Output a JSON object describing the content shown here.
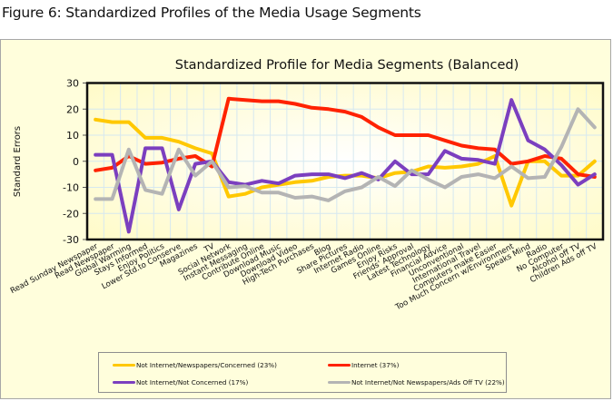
{
  "figure_title": "Figure 6: Standardized Profiles of the Media Usage Segments",
  "chart_data": {
    "type": "line",
    "title": "Standardized Profile for Media Segments (Balanced)",
    "xlabel": "",
    "ylabel": "Standard Errors",
    "ylim": [
      -30,
      30
    ],
    "yticks": [
      30,
      20,
      10,
      0,
      -10,
      -20,
      -30
    ],
    "grid": true,
    "legend_position": "bottom",
    "categories": [
      "Read Sunday Newspaper",
      "Read Newspaper",
      "Global Warming",
      "Stays Informed",
      "Enjoy Politics",
      "Lower Std.to Conserve",
      "Magazines",
      "TV",
      "Social Network",
      "Instant Messaging",
      "Contribute Online",
      "Download Music",
      "Download Video",
      "High-Tech Purchases",
      "Blog",
      "Share Pictures",
      "Internet Radio",
      "Games Online",
      "Enjoy Risks",
      "Friends' Approval",
      "Latest Technology",
      "Financial Advice",
      "Unconventional",
      "International Travel",
      "Computers make Easier",
      "Too Much Concern w/Environment",
      "Speaks Mind",
      "Radio",
      "No Computer",
      "Alcohol off TV",
      "Children Ads off TV"
    ],
    "series": [
      {
        "name": "Not Internet/Newspapers/Concerned (23%)",
        "color": "#ffc800",
        "values": [
          16,
          15,
          15,
          9,
          9,
          7.5,
          5,
          3,
          -13.5,
          -12.5,
          -10,
          -9,
          -8,
          -7.5,
          -6,
          -5.5,
          -5.5,
          -6.5,
          -4.5,
          -4,
          -2,
          -2.5,
          -2,
          -1,
          2,
          -17,
          0,
          0,
          -5.5,
          -5.5,
          0
        ]
      },
      {
        "name": "Internet (37%)",
        "color": "#ff2200",
        "values": [
          -3.5,
          -2.5,
          2,
          -1,
          -0.5,
          1,
          2,
          -2,
          24,
          23.5,
          23,
          23,
          22,
          20.5,
          20,
          19,
          17,
          13,
          10,
          10,
          10,
          8,
          6,
          5,
          4.5,
          -1,
          0,
          2,
          1,
          -5,
          -6
        ]
      },
      {
        "name": "Not Internet/Not Concerned (17%)",
        "color": "#7b3fbf",
        "values": [
          2.5,
          2.5,
          -27,
          5,
          5,
          -18.5,
          -1,
          0,
          -8,
          -9,
          -7.5,
          -8.5,
          -5.5,
          -5,
          -5,
          -6.5,
          -4.5,
          -7,
          0,
          -5,
          -5,
          4,
          1,
          0.5,
          -1,
          23.5,
          8,
          4.5,
          -1.5,
          -9,
          -5
        ]
      },
      {
        "name": "Not Internet/Not Newspapers/Ads Off TV (22%)",
        "color": "#b4b4b4",
        "values": [
          -14.5,
          -14.5,
          4.5,
          -11,
          -12.5,
          4.5,
          -5.5,
          0,
          -10,
          -9.5,
          -12,
          -12,
          -14,
          -13.5,
          -15,
          -11.5,
          -10,
          -6,
          -9.5,
          -3.5,
          -7,
          -10,
          -6,
          -5,
          -6.5,
          -2,
          -6.5,
          -6,
          5.5,
          20,
          13
        ]
      }
    ]
  }
}
